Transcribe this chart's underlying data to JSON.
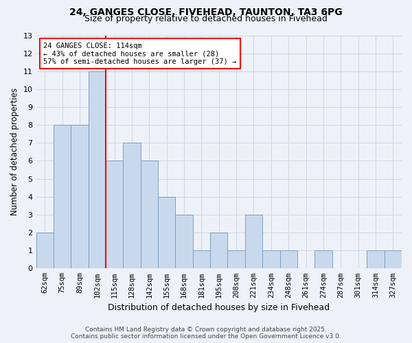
{
  "title_line1": "24, GANGES CLOSE, FIVEHEAD, TAUNTON, TA3 6PG",
  "title_line2": "Size of property relative to detached houses in Fivehead",
  "xlabel": "Distribution of detached houses by size in Fivehead",
  "ylabel": "Number of detached properties",
  "categories": [
    "62sqm",
    "75sqm",
    "89sqm",
    "102sqm",
    "115sqm",
    "128sqm",
    "142sqm",
    "155sqm",
    "168sqm",
    "181sqm",
    "195sqm",
    "208sqm",
    "221sqm",
    "234sqm",
    "248sqm",
    "261sqm",
    "274sqm",
    "287sqm",
    "301sqm",
    "314sqm",
    "327sqm"
  ],
  "values": [
    2,
    8,
    8,
    11,
    6,
    7,
    6,
    4,
    3,
    1,
    2,
    1,
    3,
    1,
    1,
    0,
    1,
    0,
    0,
    1,
    1
  ],
  "bar_color": "#c9d9ed",
  "bar_edge_color": "#7a9fc2",
  "vline_index": 4,
  "vline_color": "red",
  "annotation_text": "24 GANGES CLOSE: 114sqm\n← 43% of detached houses are smaller (28)\n57% of semi-detached houses are larger (37) →",
  "annotation_box_color": "white",
  "annotation_box_edge": "red",
  "ylim": [
    0,
    13
  ],
  "yticks": [
    0,
    1,
    2,
    3,
    4,
    5,
    6,
    7,
    8,
    9,
    10,
    11,
    12,
    13
  ],
  "grid_color": "#d0d8e8",
  "footer_line1": "Contains HM Land Registry data © Crown copyright and database right 2025.",
  "footer_line2": "Contains public sector information licensed under the Open Government Licence v3.0.",
  "bg_color": "#eef2f8"
}
